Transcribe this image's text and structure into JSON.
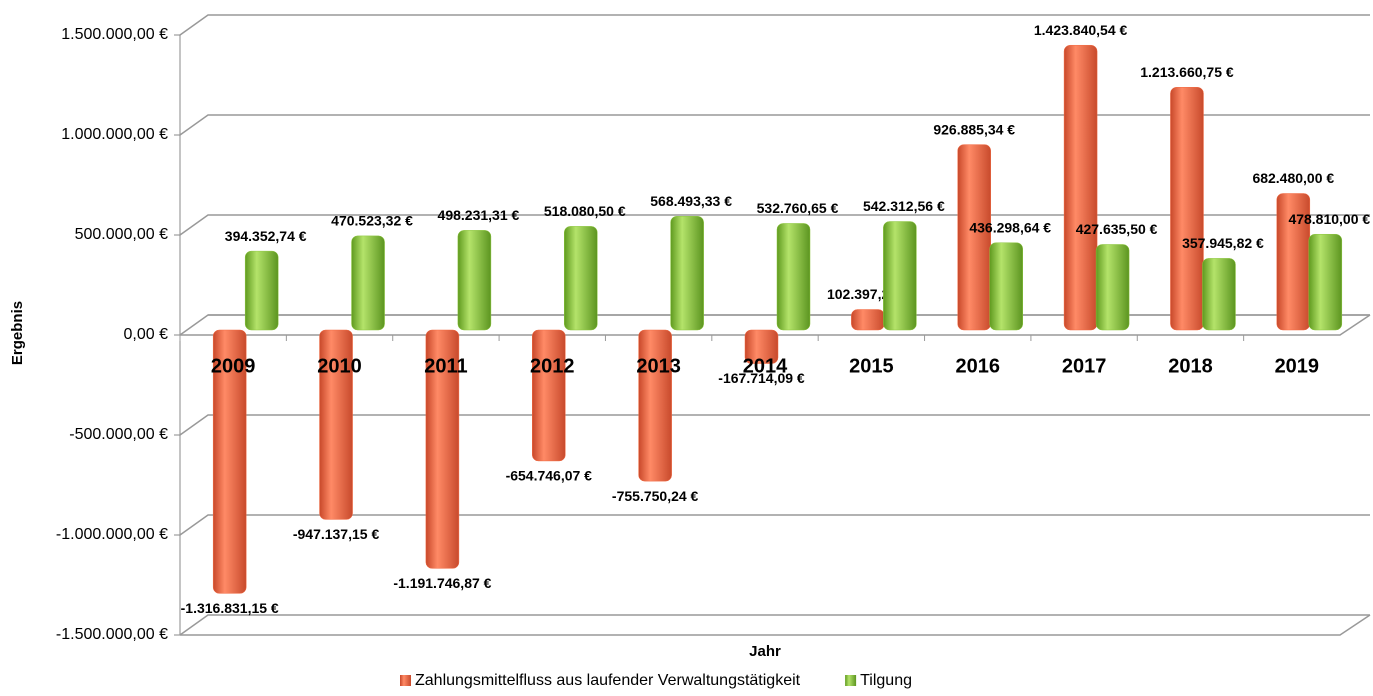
{
  "chart_data": {
    "type": "bar",
    "x_label": "Jahr",
    "y_label": "Ergebnis",
    "categories": [
      "2009",
      "2010",
      "2011",
      "2012",
      "2013",
      "2014",
      "2015",
      "2016",
      "2017",
      "2018",
      "2019"
    ],
    "series": [
      {
        "name": "Zahlungsmittelfluss aus laufender Verwaltungstätigkeit",
        "color": "#f26b43",
        "values": [
          -1316831.15,
          -947137.15,
          -1191746.87,
          -654746.07,
          -755750.24,
          -167714.09,
          102397.28,
          926885.34,
          1423840.54,
          1213660.75,
          682480.0
        ],
        "value_labels": [
          "-1.316.831,15 €",
          "-947.137,15 €",
          "-1.191.746,87 €",
          "-654.746,07 €",
          "-755.750,24 €",
          "-167.714,09 €",
          "102.397,28 €",
          "926.885,34 €",
          "1.423.840,54 €",
          "1.213.660,75 €",
          "682.480,00 €"
        ]
      },
      {
        "name": "Tilgung",
        "color": "#8dc63f",
        "values": [
          394352.74,
          470523.32,
          498231.31,
          518080.5,
          568493.33,
          532760.65,
          542312.56,
          436298.64,
          427635.5,
          357945.82,
          478810.0
        ],
        "value_labels": [
          "394.352,74 €",
          "470.523,32 €",
          "498.231,31 €",
          "518.080,50 €",
          "568.493,33 €",
          "532.760,65 €",
          "542.312,56 €",
          "436.298,64 €",
          "427.635,50 €",
          "357.945,82 €",
          "478.810,00 €"
        ]
      }
    ],
    "ylim": [
      -1500000,
      1500000
    ],
    "yticks": [
      {
        "value": -1500000,
        "label": "-1.500.000,00 €"
      },
      {
        "value": -1000000,
        "label": "-1.000.000,00 €"
      },
      {
        "value": -500000,
        "label": "-500.000,00 €"
      },
      {
        "value": 0,
        "label": "0,00 €"
      },
      {
        "value": 500000,
        "label": "500.000,00 €"
      },
      {
        "value": 1000000,
        "label": "1.000.000,00 €"
      },
      {
        "value": 1500000,
        "label": "1.500.000,00 €"
      }
    ],
    "grid": true,
    "legend": "bottom"
  }
}
